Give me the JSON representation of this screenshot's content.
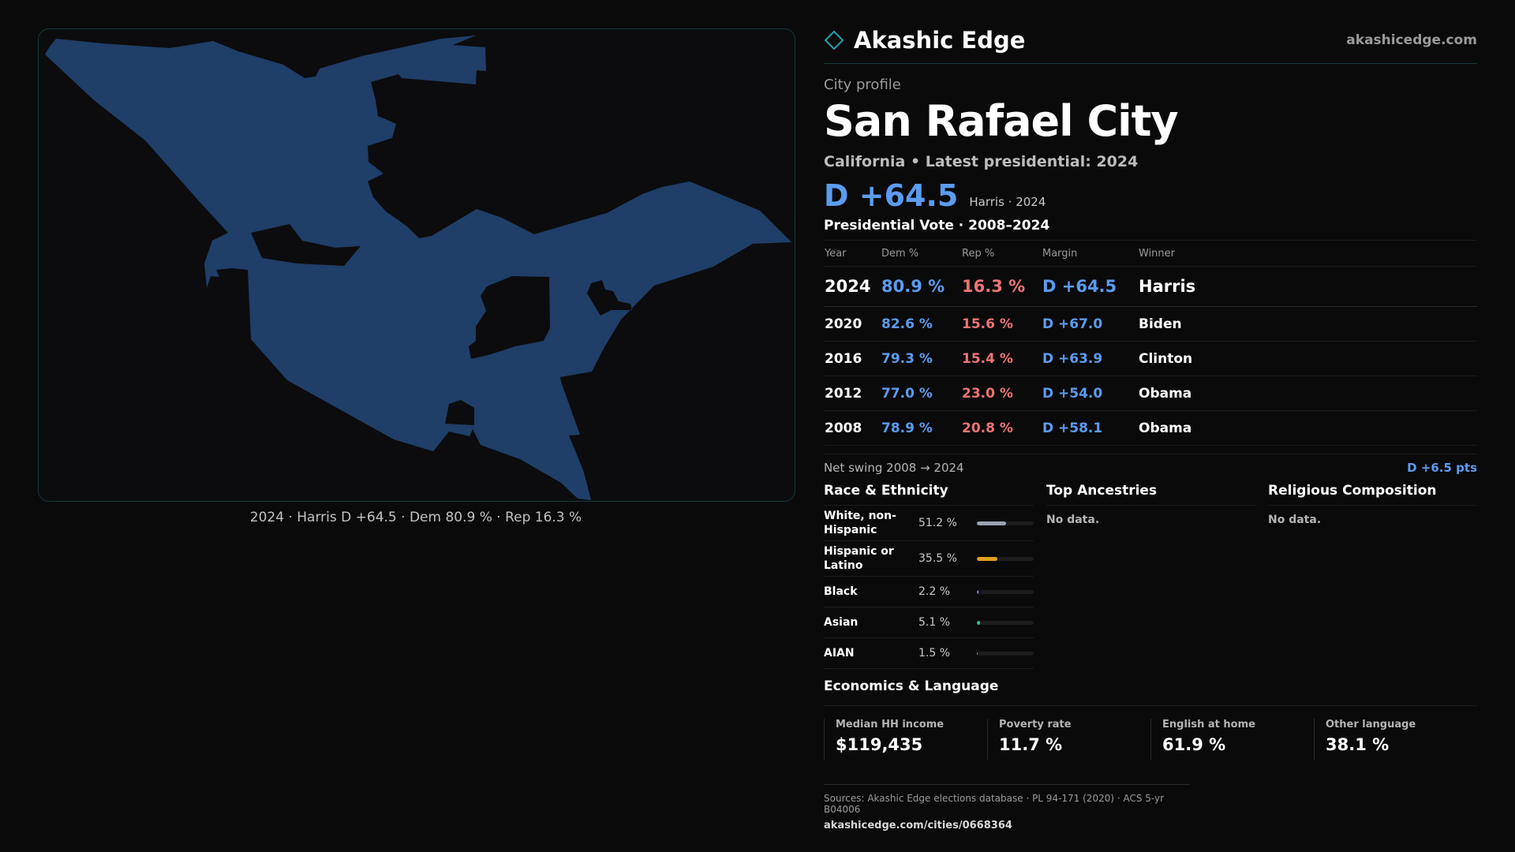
{
  "brand": {
    "name": "Akashic Edge",
    "site": "akashicedge.com"
  },
  "map": {
    "caption": "2024 · Harris D +64.5 · Dem 80.9 % · Rep 16.3 %",
    "fill_color": "#1f3e68"
  },
  "profile": {
    "eyebrow": "City profile",
    "city": "San Rafael City",
    "subtitle": "California • Latest presidential: 2024",
    "headline_margin": "D +64.5",
    "headline_note": "Harris · 2024"
  },
  "votes": {
    "title": "Presidential Vote · 2008–2024",
    "headers": [
      "Year",
      "Dem %",
      "Rep %",
      "Margin",
      "Winner"
    ],
    "rows": [
      {
        "year": "2024",
        "dem": "80.9 %",
        "rep": "16.3 %",
        "margin": "D +64.5",
        "winner": "Harris"
      },
      {
        "year": "2020",
        "dem": "82.6 %",
        "rep": "15.6 %",
        "margin": "D +67.0",
        "winner": "Biden"
      },
      {
        "year": "2016",
        "dem": "79.3 %",
        "rep": "15.4 %",
        "margin": "D +63.9",
        "winner": "Clinton"
      },
      {
        "year": "2012",
        "dem": "77.0 %",
        "rep": "23.0 %",
        "margin": "D +54.0",
        "winner": "Obama"
      },
      {
        "year": "2008",
        "dem": "78.9 %",
        "rep": "20.8 %",
        "margin": "D +58.1",
        "winner": "Obama"
      }
    ],
    "swing_label": "Net swing 2008 → 2024",
    "swing_value": "D +6.5 pts"
  },
  "race": {
    "title": "Race & Ethnicity",
    "rows": [
      {
        "label": "White, non-Hispanic",
        "pct": "51.2 %",
        "value": 51.2,
        "color": "#9aa3b3"
      },
      {
        "label": "Hispanic or Latino",
        "pct": "35.5 %",
        "value": 35.5,
        "color": "#e0a020"
      },
      {
        "label": "Black",
        "pct": "2.2 %",
        "value": 2.2,
        "color": "#8a7ad8"
      },
      {
        "label": "Asian",
        "pct": "5.1 %",
        "value": 5.1,
        "color": "#2fbf8a"
      },
      {
        "label": "AIAN",
        "pct": "1.5 %",
        "value": 1.5,
        "color": "#e0782f"
      }
    ]
  },
  "ancestries": {
    "title": "Top Ancestries",
    "empty": "No data."
  },
  "religion": {
    "title": "Religious Composition",
    "empty": "No data."
  },
  "economics": {
    "title": "Economics & Language",
    "cells": [
      {
        "label": "Median HH income",
        "value": "$119,435"
      },
      {
        "label": "Poverty rate",
        "value": "11.7 %"
      },
      {
        "label": "English at home",
        "value": "61.9 %"
      },
      {
        "label": "Other language",
        "value": "38.1 %"
      }
    ]
  },
  "sources": {
    "text": "Sources: Akashic Edge elections database · PL 94-171 (2020) · ACS 5-yr B04006",
    "url": "akashicedge.com/cities/0668364"
  }
}
